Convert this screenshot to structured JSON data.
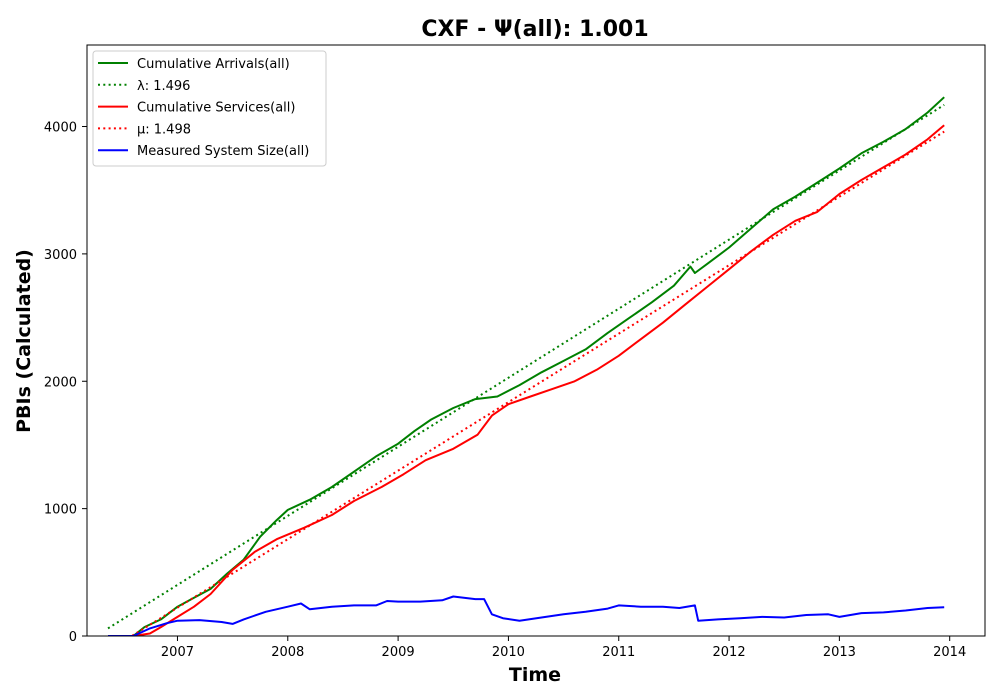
{
  "chart_data": {
    "type": "line",
    "title": "CXF -  Ψ(all): 1.001",
    "xlabel": "Time",
    "ylabel": "PBIs (Calculated)",
    "xlim": [
      2006.18,
      2014.32
    ],
    "ylim": [
      0,
      4640
    ],
    "x_ticks": [
      "2007",
      "2008",
      "2009",
      "2010",
      "2011",
      "2012",
      "2013",
      "2014"
    ],
    "y_ticks": [
      "0",
      "1000",
      "2000",
      "3000",
      "4000"
    ],
    "grid": false,
    "legend_position": "upper-left",
    "series": [
      {
        "name": "Cumulative Arrivals(all)",
        "style": "solid",
        "color": "#008000",
        "x": [
          2006.37,
          2006.6,
          2006.7,
          2006.85,
          2007.0,
          2007.15,
          2007.3,
          2007.45,
          2007.6,
          2007.75,
          2007.9,
          2008.0,
          2008.2,
          2008.4,
          2008.6,
          2008.8,
          2009.0,
          2009.15,
          2009.3,
          2009.5,
          2009.7,
          2009.9,
          2010.1,
          2010.3,
          2010.5,
          2010.7,
          2010.9,
          2011.1,
          2011.3,
          2011.5,
          2011.65,
          2011.69,
          2011.8,
          2012.0,
          2012.2,
          2012.4,
          2012.6,
          2012.8,
          2013.0,
          2013.2,
          2013.4,
          2013.6,
          2013.8,
          2013.95
        ],
        "y": [
          0,
          0,
          70,
          130,
          230,
          300,
          370,
          490,
          600,
          780,
          910,
          990,
          1070,
          1170,
          1290,
          1410,
          1510,
          1610,
          1700,
          1790,
          1860,
          1880,
          1970,
          2070,
          2160,
          2250,
          2380,
          2500,
          2620,
          2750,
          2900,
          2850,
          2920,
          3050,
          3200,
          3350,
          3450,
          3560,
          3670,
          3790,
          3880,
          3980,
          4110,
          4230
        ]
      },
      {
        "name": "λ: 1.496",
        "style": "dotted",
        "color": "#008000",
        "x": [
          2006.37,
          2013.95
        ],
        "y": [
          60,
          4170
        ]
      },
      {
        "name": "Cumulative Services(all)",
        "style": "solid",
        "color": "#ff0000",
        "x": [
          2006.37,
          2006.6,
          2006.75,
          2006.85,
          2007.0,
          2007.15,
          2007.3,
          2007.5,
          2007.7,
          2007.9,
          2008.15,
          2008.4,
          2008.6,
          2008.85,
          2009.05,
          2009.25,
          2009.5,
          2009.72,
          2009.85,
          2010.0,
          2010.2,
          2010.4,
          2010.6,
          2010.8,
          2011.0,
          2011.2,
          2011.4,
          2011.6,
          2011.8,
          2012.0,
          2012.2,
          2012.4,
          2012.6,
          2012.8,
          2013.0,
          2013.2,
          2013.4,
          2013.6,
          2013.8,
          2013.95
        ],
        "y": [
          0,
          0,
          20,
          70,
          150,
          230,
          330,
          520,
          660,
          760,
          850,
          950,
          1060,
          1170,
          1270,
          1380,
          1470,
          1580,
          1730,
          1820,
          1880,
          1940,
          2000,
          2090,
          2200,
          2330,
          2460,
          2600,
          2740,
          2880,
          3020,
          3150,
          3260,
          3330,
          3470,
          3580,
          3680,
          3780,
          3900,
          4010
        ]
      },
      {
        "name": "μ: 1.498",
        "style": "dotted",
        "color": "#ff0000",
        "x": [
          2006.55,
          2013.95
        ],
        "y": [
          -20,
          3960
        ]
      },
      {
        "name": "Measured System Size(all)",
        "style": "solid",
        "color": "#0000ff",
        "x": [
          2006.37,
          2006.6,
          2006.75,
          2006.9,
          2007.0,
          2007.2,
          2007.4,
          2007.5,
          2007.6,
          2007.8,
          2008.0,
          2008.12,
          2008.2,
          2008.4,
          2008.6,
          2008.8,
          2008.9,
          2009.0,
          2009.2,
          2009.4,
          2009.5,
          2009.7,
          2009.78,
          2009.85,
          2009.95,
          2010.1,
          2010.3,
          2010.5,
          2010.7,
          2010.9,
          2011.0,
          2011.2,
          2011.4,
          2011.55,
          2011.69,
          2011.72,
          2011.9,
          2012.1,
          2012.3,
          2012.5,
          2012.7,
          2012.9,
          2013.0,
          2013.2,
          2013.4,
          2013.6,
          2013.8,
          2013.95
        ],
        "y": [
          0,
          0,
          60,
          100,
          120,
          125,
          110,
          95,
          130,
          190,
          230,
          255,
          210,
          230,
          240,
          240,
          275,
          270,
          270,
          280,
          310,
          290,
          290,
          170,
          140,
          120,
          145,
          170,
          190,
          215,
          240,
          230,
          230,
          220,
          240,
          120,
          130,
          140,
          150,
          145,
          165,
          170,
          150,
          180,
          185,
          200,
          220,
          225
        ]
      }
    ]
  }
}
